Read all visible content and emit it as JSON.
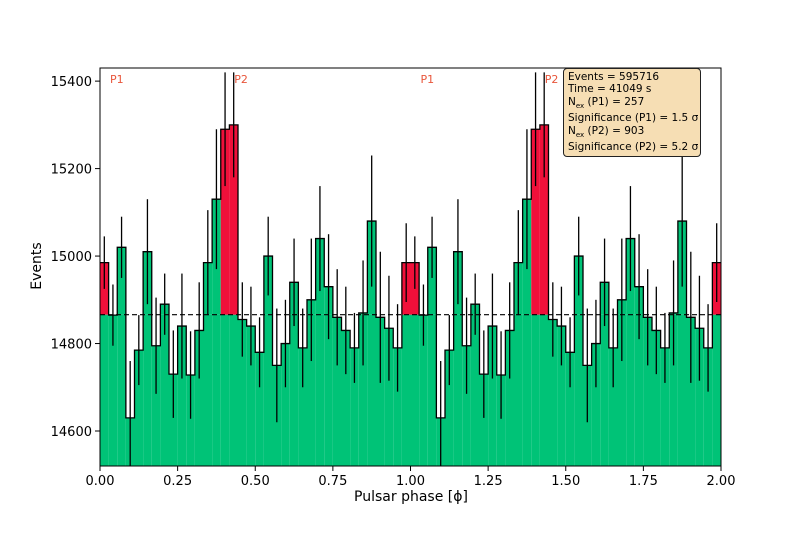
{
  "chart_data": {
    "type": "bar",
    "subtype": "phaseogram-histogram",
    "xlabel": "Pulsar phase [ϕ]",
    "ylabel": "Events",
    "xlim": [
      0.0,
      2.0
    ],
    "ylim": [
      14520,
      15430
    ],
    "x_ticks": [
      "0.00",
      "0.25",
      "0.50",
      "0.75",
      "1.00",
      "1.25",
      "1.50",
      "1.75",
      "2.00"
    ],
    "y_ticks": [
      "14600",
      "14800",
      "15000",
      "15200",
      "15400"
    ],
    "grid": false,
    "bin_width": 0.0278,
    "background_level": 14866,
    "bar_color": "#00c377",
    "peak_color": "#f0103a",
    "peak_label_color": "#e8553a",
    "stats_box_color": "#f6deb4",
    "peak_labels": [
      {
        "text": "P1",
        "phase": 0.0
      },
      {
        "text": "P2",
        "phase": 0.4
      },
      {
        "text": "P1",
        "phase": 1.0
      },
      {
        "text": "P2",
        "phase": 1.4
      }
    ],
    "peak_bins_P1": [
      0,
      35
    ],
    "peak_bins_P2": [
      14,
      15
    ],
    "counts": [
      14985,
      14865,
      15020,
      14630,
      14785,
      15010,
      14795,
      14890,
      14730,
      14840,
      14728,
      14830,
      14985,
      15130,
      15290,
      15300,
      14855,
      14840,
      14780,
      15000,
      14750,
      14800,
      14940,
      14790,
      14900,
      15040,
      14930,
      14860,
      14830,
      14790,
      14870,
      15080,
      14860,
      14835,
      14790,
      14985
    ],
    "errors": [
      60,
      70,
      70,
      130,
      80,
      120,
      110,
      70,
      100,
      120,
      100,
      110,
      120,
      160,
      130,
      120,
      85,
      90,
      80,
      90,
      130,
      100,
      100,
      90,
      140,
      120,
      120,
      110,
      100,
      80,
      120,
      150,
      150,
      120,
      100,
      90
    ],
    "stats": {
      "events": "Events = 595716",
      "time": "Time = 41049 s",
      "nex_p1": "N",
      "nex_p1_sub": "ex",
      "nex_p1_rest": " (P1) = 257",
      "sig_p1": "Significance (P1) = 1.5 σ",
      "nex_p2": "N",
      "nex_p2_sub": "ex",
      "nex_p2_rest": " (P2) = 903",
      "sig_p2": "Significance (P2) = 5.2 σ"
    }
  }
}
